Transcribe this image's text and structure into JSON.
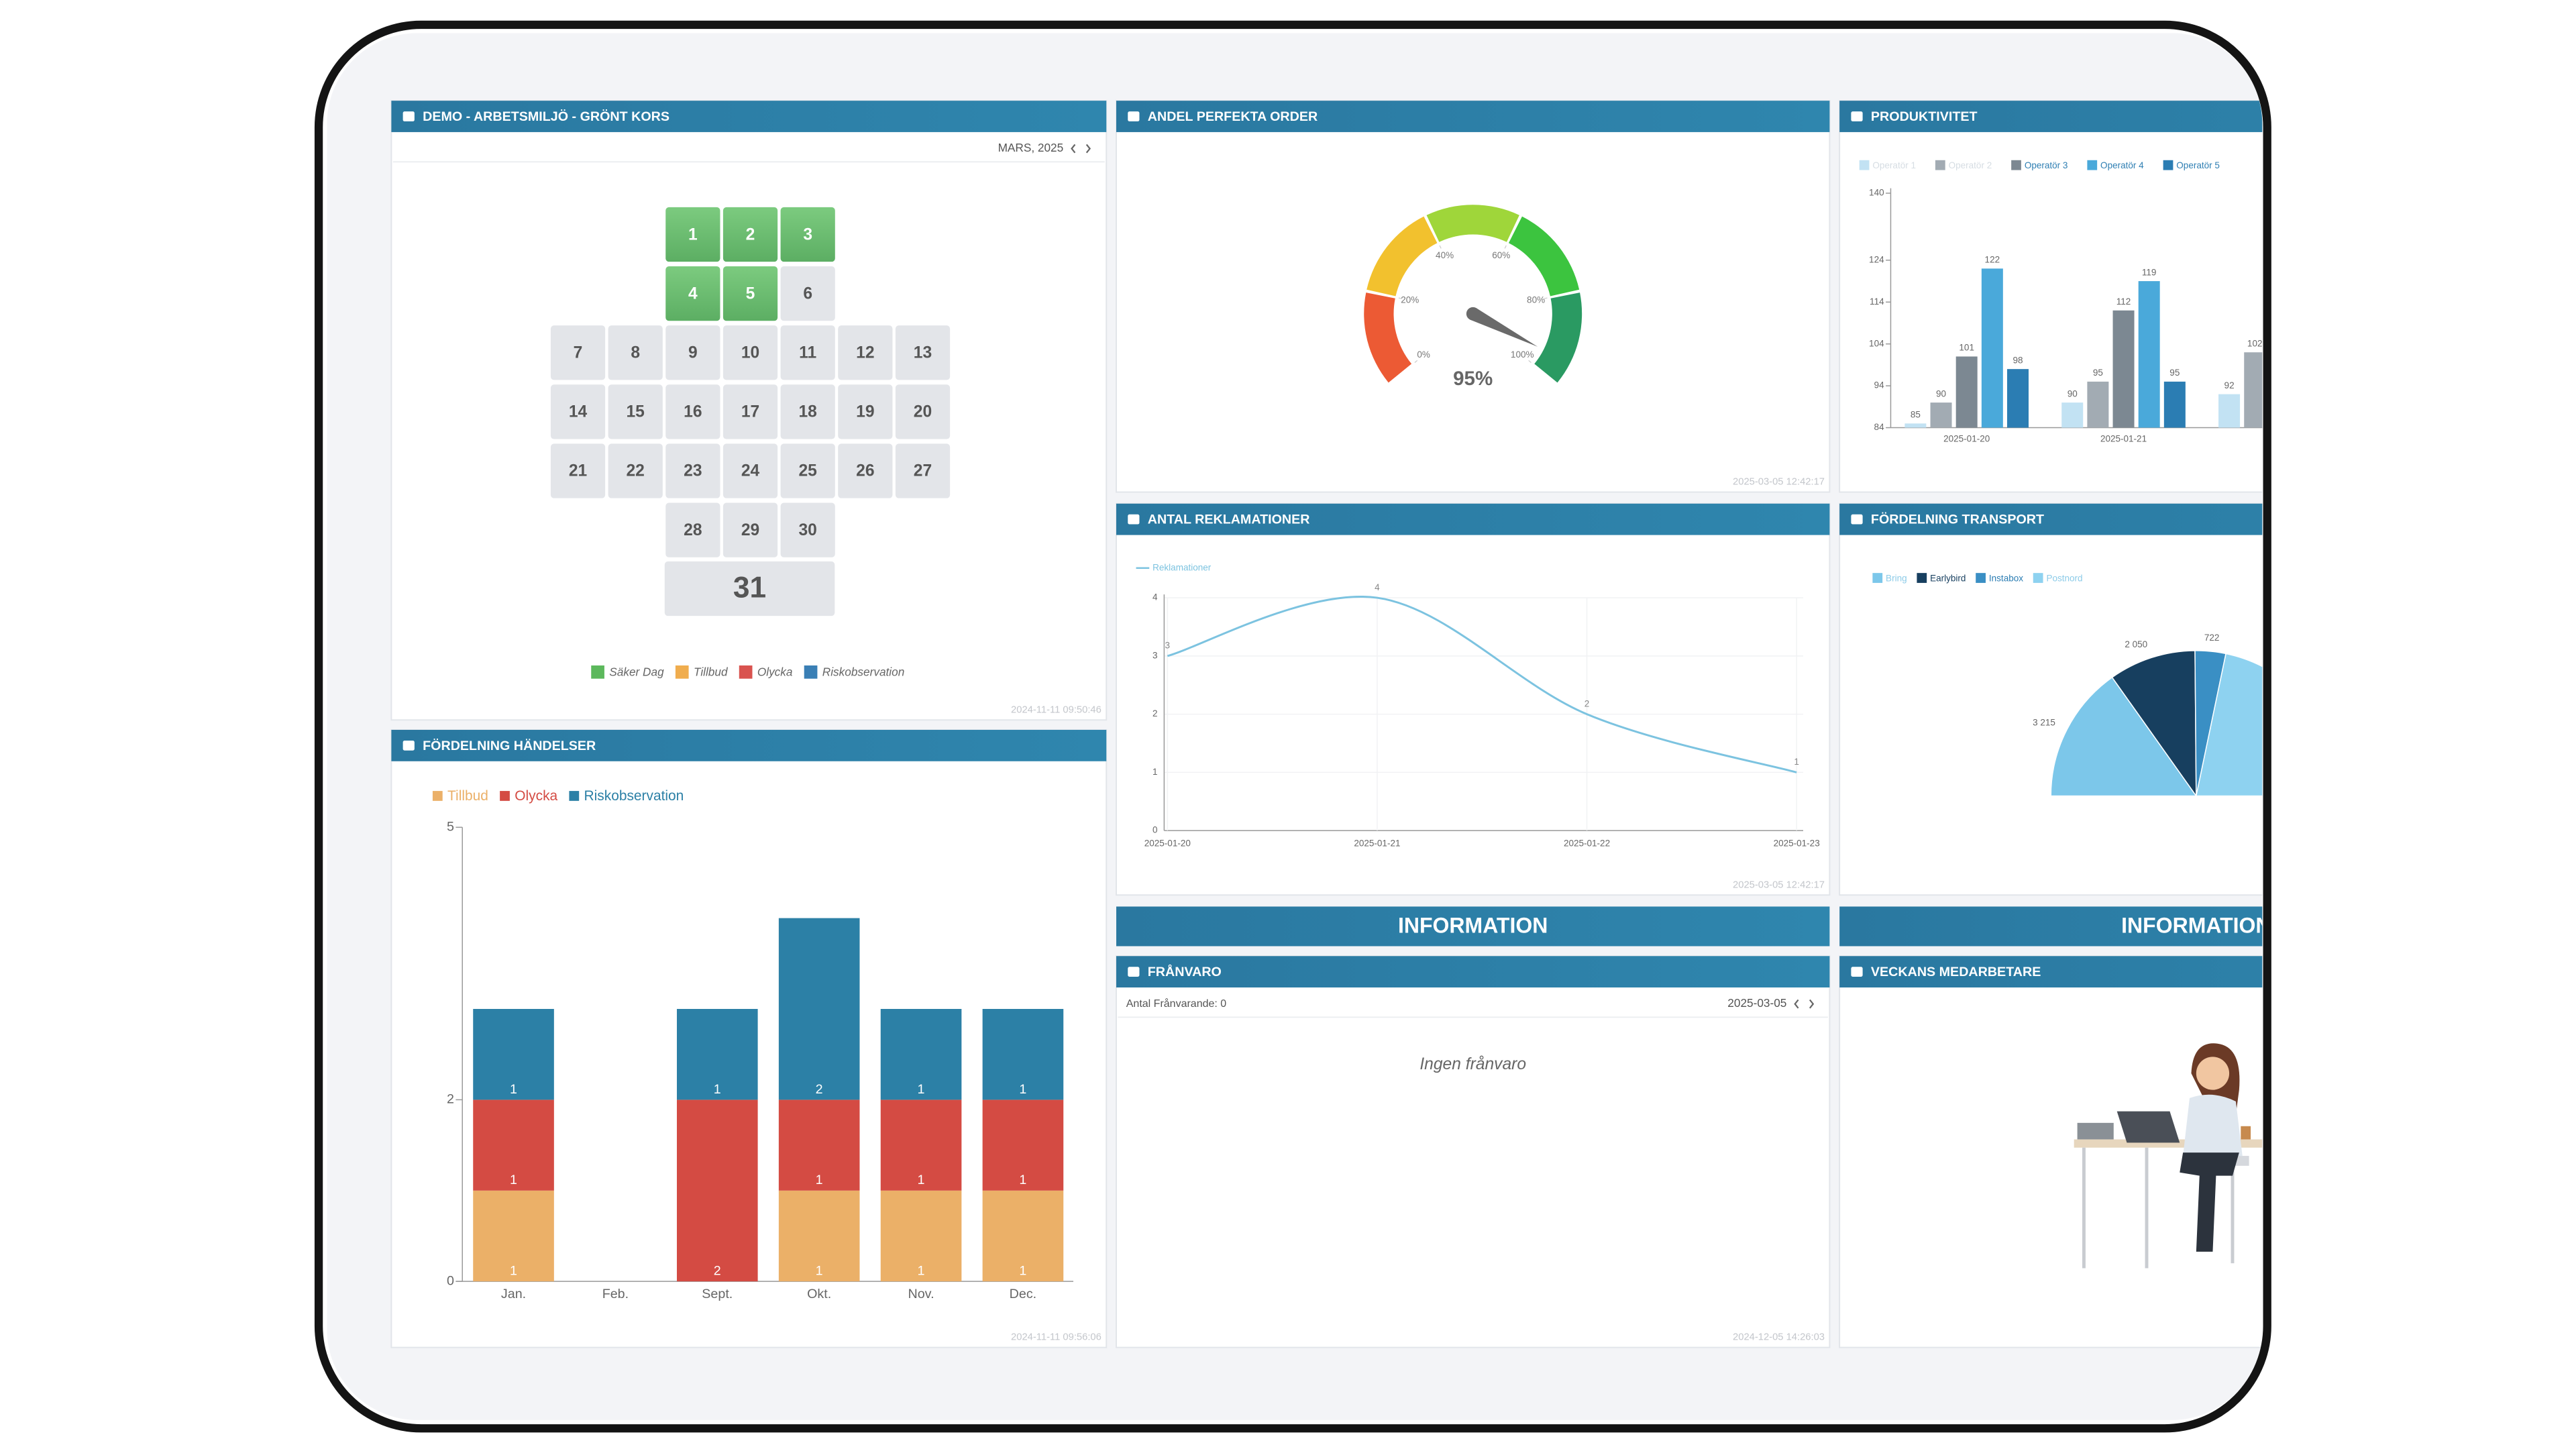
{
  "calendar": {
    "title": "DEMO - ARBETSMILJÖ - GRÖNT KORS",
    "month": "MARS, 2025",
    "days": [
      1,
      2,
      3,
      4,
      5,
      6,
      7,
      8,
      9,
      10,
      11,
      12,
      13,
      14,
      15,
      16,
      17,
      18,
      19,
      20,
      21,
      22,
      23,
      24,
      25,
      26,
      27,
      28,
      29,
      30
    ],
    "day_status": [
      "safe",
      "safe",
      "safe",
      "safe",
      "safe",
      "open",
      "open",
      "open",
      "open",
      "open",
      "open",
      "open",
      "open",
      "open",
      "open",
      "open",
      "open",
      "open",
      "open",
      "open",
      "open",
      "open",
      "open",
      "open",
      "open",
      "open",
      "open",
      "open",
      "open",
      "open"
    ],
    "last_day": 31,
    "legend": [
      {
        "name": "Säker Dag",
        "color": "#5cb85c"
      },
      {
        "name": "Tillbud",
        "color": "#f0ad4e"
      },
      {
        "name": "Olycka",
        "color": "#d9534f"
      },
      {
        "name": "Riskobservation",
        "color": "#3a7fb5"
      }
    ],
    "footer": "2024-11-11 09:50:46"
  },
  "chart_data": [
    {
      "type": "gauge",
      "title": "ANDEL PERFEKTA ORDER",
      "value": 95,
      "value_label": "95%",
      "ylim": [
        0,
        100
      ],
      "yticks": [
        {
          "value": 0,
          "label": "0%"
        },
        {
          "value": 20,
          "label": "20%"
        },
        {
          "value": 40,
          "label": "40%"
        },
        {
          "value": 60,
          "label": "60%"
        },
        {
          "value": 80,
          "label": "80%"
        },
        {
          "value": 100,
          "label": "100%"
        }
      ],
      "colors": [
        "#ec5a34",
        "#f2c12e",
        "#9fd63a",
        "#3cc43f",
        "#2a9a62"
      ],
      "footer": "2025-03-05 12:42:17"
    },
    {
      "type": "bar",
      "title": "PRODUKTIVITET",
      "categories": [
        "2025-01-20",
        "2025-01-21",
        null
      ],
      "series": [
        {
          "name": "Operatör 1",
          "color": "#c2e2f3",
          "legend_faded": true,
          "values": [
            85,
            90,
            92
          ]
        },
        {
          "name": "Operatör 2",
          "color": "#a2abb3",
          "legend_faded": true,
          "values": [
            90,
            95,
            102
          ]
        },
        {
          "name": "Operatör 3",
          "color": "#7c8892",
          "values": [
            101,
            112,
            null
          ]
        },
        {
          "name": "Operatör 4",
          "color": "#4aa9da",
          "values": [
            122,
            119,
            null
          ]
        },
        {
          "name": "Operatör 5",
          "color": "#2b7db3",
          "values": [
            98,
            95,
            null
          ]
        }
      ],
      "ylim": [
        84,
        140
      ],
      "yticks": [
        84,
        94,
        104,
        114,
        124,
        140
      ]
    },
    {
      "type": "line",
      "title": "ANTAL REKLAMATIONER",
      "x": [
        "2025-01-20",
        "2025-01-21",
        "2025-01-22",
        "2025-01-23"
      ],
      "series": [
        {
          "name": "Reklamationer",
          "color": "#7cc3e0",
          "values": [
            3,
            4,
            2,
            1
          ]
        }
      ],
      "ylim": [
        0,
        4
      ],
      "yticks": [
        0,
        1,
        2,
        3,
        4
      ],
      "grid": true,
      "footer": "2025-03-05 12:42:17"
    },
    {
      "type": "pie",
      "title": "FÖRDELNING TRANSPORT",
      "labels": [
        "Bring",
        "Earlybird",
        "Instabox",
        "Postnord"
      ],
      "values": [
        3215,
        2050,
        722,
        4600
      ],
      "value_labels": [
        "3 215",
        "2 050",
        "722",
        null
      ],
      "colors": [
        "#7cc7ea",
        "#173f5f",
        "#3a8fc4",
        "#8ed2f0"
      ]
    },
    {
      "type": "stacked_bar",
      "title": "FÖRDELNING HÄNDELSER",
      "categories": [
        "Jan.",
        "Feb.",
        "Sept.",
        "Okt.",
        "Nov.",
        "Dec."
      ],
      "series": [
        {
          "name": "Tillbud",
          "color": "#ebb068",
          "values": [
            1,
            0,
            0,
            1,
            1,
            1
          ]
        },
        {
          "name": "Olycka",
          "color": "#d44b43",
          "values": [
            1,
            0,
            2,
            1,
            1,
            1
          ]
        },
        {
          "name": "Riskobservation",
          "color": "#2c80a6",
          "values": [
            1,
            0,
            1,
            2,
            1,
            1
          ]
        }
      ],
      "ylim": [
        0,
        5
      ],
      "yticks": [
        0,
        2,
        5
      ],
      "footer": "2024-11-11 09:56:06"
    }
  ],
  "information": [
    "INFORMATION",
    "INFORMATION"
  ],
  "absence": {
    "title": "FRÅNVARO",
    "count_label": "Antal Frånvarande: 0",
    "date": "2025-03-05",
    "empty_text": "Ingen frånvaro",
    "footer": "2024-12-05 14:26:03"
  },
  "employee": {
    "title": "VECKANS MEDARBETARE"
  }
}
